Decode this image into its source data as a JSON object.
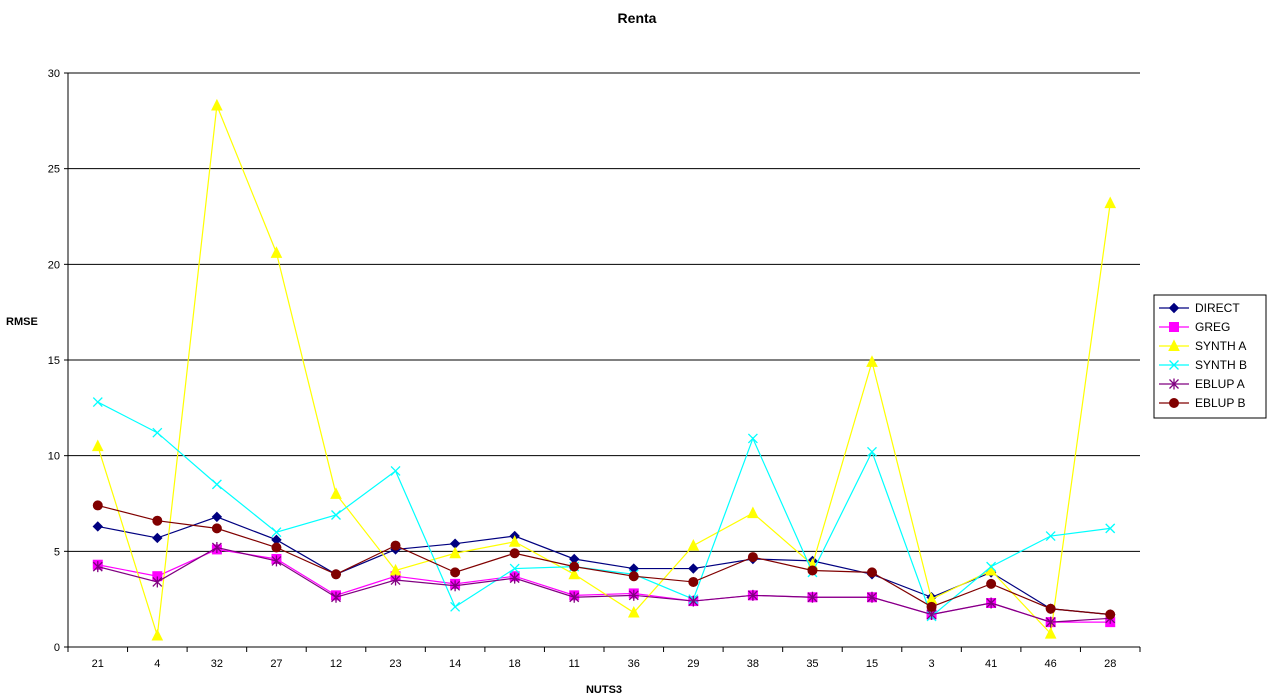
{
  "chart_data": {
    "type": "line",
    "title": "Renta",
    "xlabel": "NUTS3",
    "ylabel": "RMSE",
    "categories": [
      "21",
      "4",
      "32",
      "27",
      "12",
      "23",
      "14",
      "18",
      "11",
      "36",
      "29",
      "38",
      "35",
      "15",
      "3",
      "41",
      "46",
      "28"
    ],
    "ylim": [
      0,
      30
    ],
    "yticks": [
      0,
      5,
      10,
      15,
      20,
      25,
      30
    ],
    "grid": "horizontal",
    "legend": "right",
    "series": [
      {
        "name": "DIRECT",
        "color": "#000080",
        "marker": "diamond",
        "values": [
          6.3,
          5.7,
          6.8,
          5.6,
          3.8,
          5.1,
          5.4,
          5.8,
          4.6,
          4.1,
          4.1,
          4.6,
          4.5,
          3.8,
          2.6,
          3.9,
          2.0,
          1.7
        ]
      },
      {
        "name": "GREG",
        "color": "#FF00FF",
        "marker": "square",
        "values": [
          4.3,
          3.7,
          5.1,
          4.6,
          2.7,
          3.7,
          3.3,
          3.7,
          2.7,
          2.8,
          2.4,
          2.7,
          2.6,
          2.6,
          1.7,
          2.3,
          1.3,
          1.3
        ]
      },
      {
        "name": "SYNTH A",
        "color": "#FFFF00",
        "marker": "triangle",
        "values": [
          10.5,
          0.6,
          28.3,
          20.6,
          8.0,
          4.0,
          4.9,
          5.5,
          3.8,
          1.8,
          5.3,
          7.0,
          4.3,
          14.9,
          2.5,
          4.0,
          0.7,
          23.2
        ]
      },
      {
        "name": "SYNTH B",
        "color": "#00FFFF",
        "marker": "x",
        "values": [
          12.8,
          11.2,
          8.5,
          6.0,
          6.9,
          9.2,
          2.1,
          4.1,
          4.2,
          3.8,
          2.5,
          10.9,
          3.9,
          10.2,
          1.6,
          4.2,
          5.8,
          6.2
        ]
      },
      {
        "name": "EBLUP A",
        "color": "#800080",
        "marker": "asterisk",
        "values": [
          4.2,
          3.4,
          5.2,
          4.5,
          2.6,
          3.5,
          3.2,
          3.6,
          2.6,
          2.7,
          2.4,
          2.7,
          2.6,
          2.6,
          1.7,
          2.3,
          1.3,
          1.5
        ]
      },
      {
        "name": "EBLUP B",
        "color": "#800000",
        "marker": "circle",
        "values": [
          7.4,
          6.6,
          6.2,
          5.2,
          3.8,
          5.3,
          3.9,
          4.9,
          4.2,
          3.7,
          3.4,
          4.7,
          4.0,
          3.9,
          2.1,
          3.3,
          2.0,
          1.7
        ]
      }
    ]
  }
}
